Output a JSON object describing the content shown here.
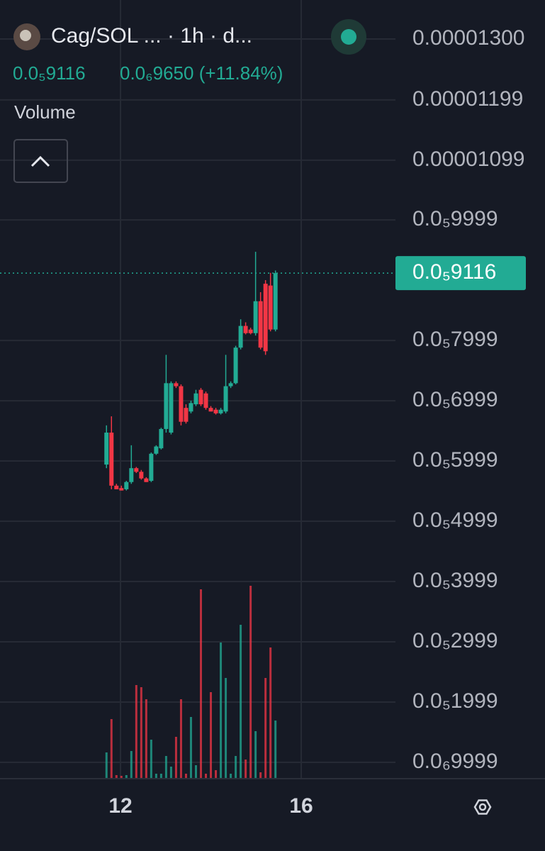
{
  "header": {
    "title": "Cag/SOL ... · 1h · d...",
    "change": "0.0₆9650 (+11.84%)",
    "volume_label": "Volume"
  },
  "chart_data": {
    "type": "candlestick",
    "current_price": 9.116e-06,
    "current_price_label": "0.0₅9116",
    "up_color": "#22ab94",
    "down_color": "#f23645",
    "grid": true,
    "xlim": [
      9.333,
      18.086
    ],
    "xticks": [
      12,
      16
    ],
    "ylim": [
      7.29e-07,
      1.3647e-05
    ],
    "yticks": [
      {
        "value": 1.3e-05,
        "label": "0.00001300"
      },
      {
        "value": 1.199e-05,
        "label": "0.00001199"
      },
      {
        "value": 1.099e-05,
        "label": "0.00001099"
      },
      {
        "value": 9.999e-06,
        "label": "0.0₅9999"
      },
      {
        "value": 7.999e-06,
        "label": "0.0₅7999"
      },
      {
        "value": 6.999e-06,
        "label": "0.0₅6999"
      },
      {
        "value": 5.999e-06,
        "label": "0.0₅5999"
      },
      {
        "value": 4.999e-06,
        "label": "0.0₅4999"
      },
      {
        "value": 3.999e-06,
        "label": "0.0₅3999"
      },
      {
        "value": 2.999e-06,
        "label": "0.0₅2999"
      },
      {
        "value": 1.999e-06,
        "label": "0.0₅1999"
      },
      {
        "value": 9.999e-07,
        "label": "0.0₆9999"
      }
    ],
    "x": [
      11.69,
      11.8,
      11.91,
      12.02,
      12.13,
      12.24,
      12.35,
      12.46,
      12.57,
      12.68,
      12.79,
      12.9,
      13.01,
      13.12,
      13.23,
      13.34,
      13.45,
      13.56,
      13.67,
      13.78,
      13.89,
      14.0,
      14.11,
      14.22,
      14.33,
      14.44,
      14.55,
      14.66,
      14.77,
      14.88,
      14.99,
      15.1,
      15.21,
      15.32,
      15.43
    ],
    "open": [
      5.94e-06,
      6.47e-06,
      5.59e-06,
      5.55e-06,
      5.53e-06,
      5.65e-06,
      5.88e-06,
      5.82e-06,
      5.71e-06,
      5.67e-06,
      6.12e-06,
      6.21e-06,
      6.53e-06,
      6.47e-06,
      7.29e-06,
      7.24e-06,
      6.88e-06,
      6.82e-06,
      6.94e-06,
      7.18e-06,
      7.12e-06,
      6.88e-06,
      6.85e-06,
      6.79e-06,
      6.82e-06,
      7.24e-06,
      7.29e-06,
      7.88e-06,
      8.24e-06,
      8.18e-06,
      8.12e-06,
      8.65e-06,
      8.94e-06,
      8.91e-06,
      8.18e-06
    ],
    "high": [
      6.59e-06,
      6.74e-06,
      5.62e-06,
      5.59e-06,
      5.67e-06,
      6.26e-06,
      5.9e-06,
      5.85e-06,
      5.73e-06,
      6.14e-06,
      6.26e-06,
      6.55e-06,
      7.76e-06,
      7.32e-06,
      7.32e-06,
      7.27e-06,
      6.94e-06,
      7e-06,
      7.18e-06,
      7.21e-06,
      7.15e-06,
      6.91e-06,
      6.88e-06,
      6.88e-06,
      7.76e-06,
      7.32e-06,
      7.91e-06,
      8.35e-06,
      8.3e-06,
      8.21e-06,
      9.47e-06,
      8.8e-06,
      9e-06,
      9.12e-06,
      9.16e-06
    ],
    "low": [
      5.88e-06,
      5.53e-06,
      5.53e-06,
      5.51e-06,
      5.51e-06,
      5.62e-06,
      5.8e-06,
      5.69e-06,
      5.65e-06,
      5.65e-06,
      6.1e-06,
      6.19e-06,
      6.47e-06,
      6.44e-06,
      7.21e-06,
      6.59e-06,
      6.62e-06,
      6.79e-06,
      6.91e-06,
      6.91e-06,
      6.85e-06,
      6.82e-06,
      6.77e-06,
      6.77e-06,
      6.79e-06,
      7.21e-06,
      7.27e-06,
      7.85e-06,
      8.1e-06,
      8.1e-06,
      8.08e-06,
      7.85e-06,
      7.76e-06,
      8.15e-06,
      8.15e-06
    ],
    "close": [
      6.47e-06,
      5.59e-06,
      5.53e-06,
      5.51e-06,
      5.65e-06,
      5.88e-06,
      5.82e-06,
      5.71e-06,
      5.65e-06,
      6.12e-06,
      6.24e-06,
      6.53e-06,
      7.29e-06,
      7.29e-06,
      7.24e-06,
      6.65e-06,
      6.65e-06,
      6.96e-06,
      7.12e-06,
      6.94e-06,
      6.88e-06,
      6.82e-06,
      6.79e-06,
      6.85e-06,
      7.24e-06,
      7.29e-06,
      7.88e-06,
      8.24e-06,
      8.12e-06,
      8.12e-06,
      8.65e-06,
      7.88e-06,
      7.82e-06,
      8.18e-06,
      9.116e-06
    ],
    "volume": [
      37,
      84,
      5,
      4,
      5,
      39,
      132,
      129,
      112,
      55,
      7,
      7,
      32,
      17,
      59,
      112,
      7,
      87,
      19,
      267,
      7,
      122,
      12,
      192,
      142,
      7,
      32,
      217,
      27,
      272,
      67,
      9,
      142,
      185,
      82
    ],
    "volume_ylim": [
      0,
      290
    ]
  }
}
